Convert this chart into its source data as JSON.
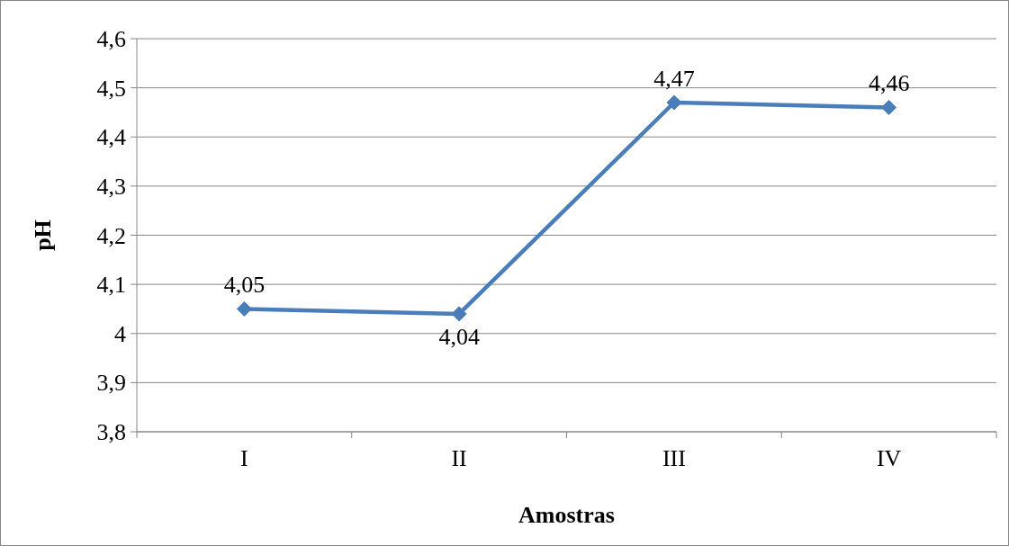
{
  "chart_data": {
    "type": "line",
    "xlabel": "Amostras",
    "ylabel": "pH",
    "categories": [
      "I",
      "II",
      "III",
      "IV"
    ],
    "series": [
      {
        "color": "#4a7ebb",
        "values": [
          4.05,
          4.04,
          4.47,
          4.46
        ],
        "value_labels": [
          "4,05",
          "4,04",
          "4,47",
          "4,46"
        ]
      }
    ],
    "ylim": [
      3.8,
      4.6
    ],
    "yticks": [
      {
        "value": 3.8,
        "label": "3,8"
      },
      {
        "value": 3.9,
        "label": "3,9"
      },
      4,
      {
        "value": 4.1,
        "label": "4,1"
      },
      {
        "value": 4.2,
        "label": "4,2"
      },
      {
        "value": 4.3,
        "label": "4,3"
      },
      {
        "value": 4.4,
        "label": "4,4"
      },
      {
        "value": 4.5,
        "label": "4,5"
      },
      {
        "value": 4.6,
        "label": "4,6"
      }
    ],
    "grid": "y",
    "marker": "diamond",
    "line_style": "solid"
  }
}
